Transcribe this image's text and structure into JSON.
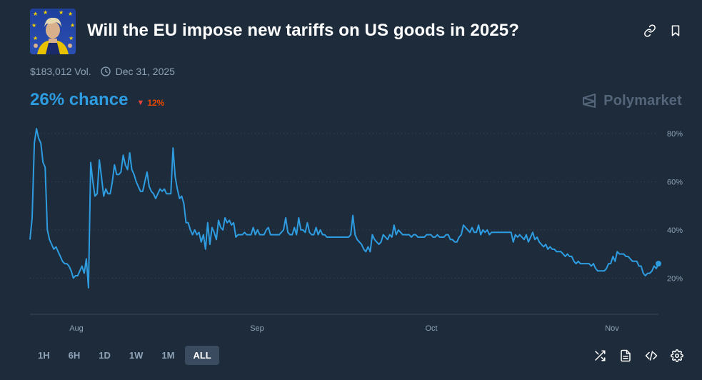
{
  "market": {
    "title": "Will the EU impose new tariffs on US goods in 2025?",
    "volume": "$183,012 Vol.",
    "end_date": "Dec 31, 2025",
    "chance": "26% chance",
    "change": "12%",
    "change_direction": "down",
    "brand": "Polymarket"
  },
  "colors": {
    "accent": "#2e9ce0",
    "down": "#e64800",
    "background": "#1d2b3a"
  },
  "header_icons": [
    "link-icon",
    "bookmark-icon"
  ],
  "timeframes": [
    {
      "label": "1H",
      "active": false
    },
    {
      "label": "6H",
      "active": false
    },
    {
      "label": "1D",
      "active": false
    },
    {
      "label": "1W",
      "active": false
    },
    {
      "label": "1M",
      "active": false
    },
    {
      "label": "ALL",
      "active": true
    }
  ],
  "toolbar_icons": [
    "shuffle-icon",
    "document-icon",
    "code-icon",
    "settings-icon"
  ],
  "chart_data": {
    "type": "line",
    "xlabel": "",
    "ylabel": "",
    "x_ticks": [
      "Aug",
      "Sep",
      "Oct",
      "Nov"
    ],
    "y_ticks": [
      "20%",
      "40%",
      "60%",
      "80%"
    ],
    "ylim": [
      5,
      85
    ],
    "grid": "horizontal dotted",
    "series": [
      {
        "values": [
          36,
          45,
          76,
          82,
          78,
          76,
          68,
          66,
          40,
          36,
          34,
          32,
          33,
          31,
          29,
          27,
          26,
          26,
          25,
          23,
          20,
          21,
          21,
          23,
          25,
          22,
          28,
          16,
          68,
          60,
          54,
          55,
          69,
          62,
          54,
          57,
          55,
          55,
          60,
          67,
          63,
          63,
          64,
          71,
          67,
          65,
          72,
          65,
          63,
          60,
          58,
          56,
          56,
          60,
          64,
          58,
          56,
          55,
          53,
          55,
          57,
          56,
          57,
          55,
          55,
          55,
          74,
          62,
          57,
          53,
          54,
          51,
          43,
          43,
          40,
          38,
          40,
          38,
          39,
          35,
          38,
          32,
          43,
          34,
          41,
          39,
          36,
          44,
          41,
          40,
          45,
          43,
          44,
          42,
          43,
          37,
          38,
          38,
          38,
          39,
          38,
          38,
          38,
          41,
          38,
          40,
          38,
          38,
          38,
          40,
          41,
          38,
          38,
          38,
          38,
          38,
          39,
          40,
          45,
          39,
          38,
          38,
          41,
          38,
          45,
          40,
          40,
          39,
          43,
          39,
          38,
          38,
          41,
          38,
          40,
          38,
          38,
          37,
          37,
          37,
          37,
          37,
          37,
          37,
          37,
          37,
          37,
          37,
          38,
          46,
          38,
          36,
          35,
          34,
          32,
          31,
          33,
          31,
          38,
          36,
          35,
          34,
          35,
          38,
          37,
          36,
          38,
          37,
          42,
          38,
          40,
          39,
          38,
          38,
          38,
          38,
          37,
          38,
          38,
          37,
          37,
          37,
          37,
          38,
          38,
          38,
          37,
          37,
          38,
          37,
          37,
          37,
          38,
          38,
          36,
          36,
          35,
          35,
          37,
          38,
          42,
          41,
          40,
          39,
          41,
          39,
          39,
          42,
          38,
          40,
          39,
          40,
          38,
          39,
          39,
          39,
          39,
          39,
          39,
          39,
          39,
          39,
          39,
          35,
          38,
          37,
          38,
          37,
          36,
          38,
          35,
          37,
          39,
          36,
          37,
          35,
          34,
          33,
          34,
          32,
          33,
          32,
          32,
          31,
          31,
          31,
          30,
          29,
          30,
          29,
          29,
          27,
          26,
          27,
          26,
          26,
          26,
          26,
          26,
          25,
          26,
          24,
          23,
          23,
          23,
          23,
          24,
          26,
          26,
          29,
          27,
          31,
          30,
          30,
          30,
          29,
          29,
          28,
          27,
          27,
          27,
          25,
          25,
          22,
          21,
          22,
          22,
          23,
          25,
          24,
          26
        ]
      }
    ]
  }
}
